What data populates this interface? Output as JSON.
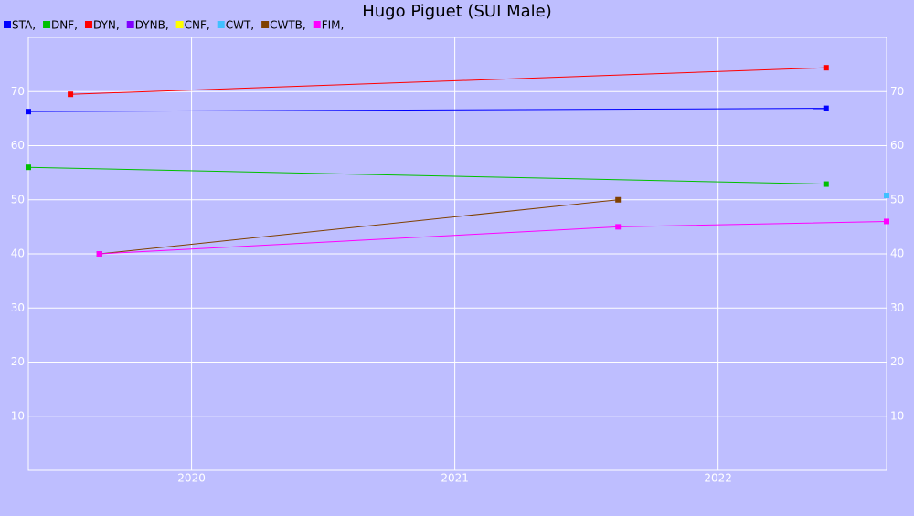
{
  "chart_data": {
    "type": "line",
    "title": "Hugo Piguet (SUI Male)",
    "xlim": [
      2019.38,
      2022.64
    ],
    "xticks": [
      2020,
      2021,
      2022
    ],
    "ylim": [
      0,
      80
    ],
    "yticks": [
      10,
      20,
      30,
      40,
      50,
      60,
      70
    ],
    "grid": true,
    "series": [
      {
        "name": "STA,",
        "color": "#0000ff",
        "x": [
          2019.38,
          2022.41
        ],
        "values": [
          66.3,
          66.9
        ]
      },
      {
        "name": "DNF,",
        "color": "#00c000",
        "x": [
          2019.38,
          2022.41
        ],
        "values": [
          56,
          52.9
        ]
      },
      {
        "name": "DYN,",
        "color": "#ff0000",
        "x": [
          2019.54,
          2022.41
        ],
        "values": [
          69.5,
          74.4
        ]
      },
      {
        "name": "DYNB,",
        "color": "#8000ff",
        "x": [],
        "values": []
      },
      {
        "name": "CNF,",
        "color": "#ffff00",
        "x": [],
        "values": []
      },
      {
        "name": "CWT,",
        "color": "#40c0ff",
        "x": [
          2022.64
        ],
        "values": [
          50.8
        ]
      },
      {
        "name": "CWTB,",
        "color": "#804000",
        "x": [
          2019.65,
          2021.62
        ],
        "values": [
          40,
          50
        ]
      },
      {
        "name": "FIM,",
        "color": "#ff00ff",
        "x": [
          2019.65,
          2021.62,
          2022.64
        ],
        "values": [
          40,
          45,
          46
        ]
      }
    ]
  }
}
